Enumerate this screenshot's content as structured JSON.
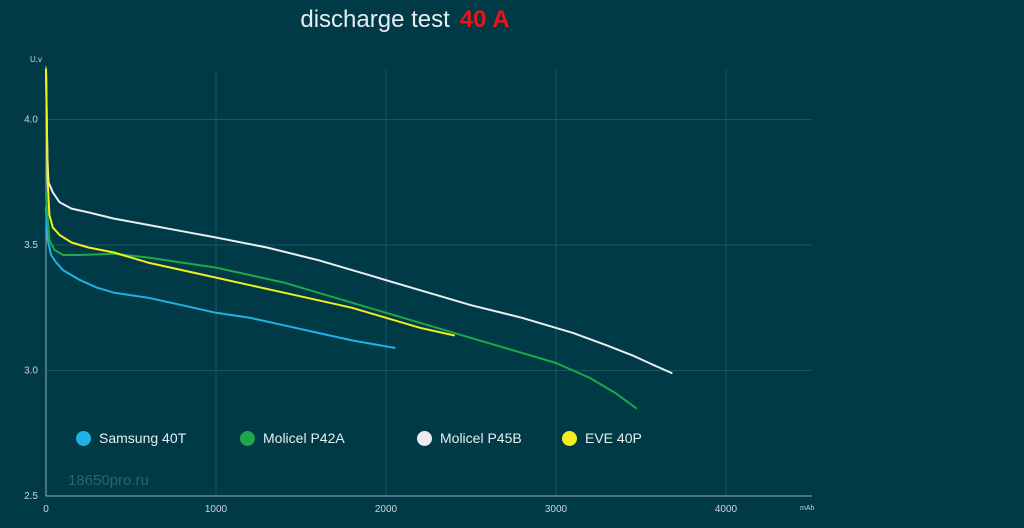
{
  "title": {
    "text": "discharge test",
    "highlight": "40 A"
  },
  "watermark": "18650pro.ru",
  "chart_data": {
    "type": "line",
    "ylabel": "U,v",
    "xlabel": "mAh",
    "xlim": [
      0,
      4500
    ],
    "ylim": [
      2.5,
      4.2
    ],
    "xticks": [
      0,
      1000,
      2000,
      3000,
      4000
    ],
    "yticks": [
      2.5,
      3.0,
      3.5,
      4.0
    ],
    "ytick_labels": [
      "2.5",
      "3.0",
      "3.5",
      "4.0"
    ],
    "grid": true,
    "series": [
      {
        "name": "Samsung 40T",
        "color": "#1db3e8",
        "x": [
          0,
          10,
          30,
          60,
          100,
          150,
          200,
          300,
          400,
          600,
          800,
          1000,
          1200,
          1400,
          1600,
          1800,
          2050
        ],
        "y": [
          3.65,
          3.52,
          3.46,
          3.43,
          3.4,
          3.38,
          3.36,
          3.33,
          3.31,
          3.29,
          3.26,
          3.23,
          3.21,
          3.18,
          3.15,
          3.12,
          3.09
        ]
      },
      {
        "name": "Molicel P42A",
        "color": "#1fa84a",
        "x": [
          0,
          20,
          50,
          100,
          200,
          400,
          600,
          800,
          1000,
          1200,
          1400,
          1600,
          1800,
          2000,
          2200,
          2400,
          2600,
          2800,
          3000,
          3200,
          3350,
          3470
        ],
        "y": [
          3.7,
          3.52,
          3.48,
          3.46,
          3.46,
          3.465,
          3.45,
          3.43,
          3.41,
          3.38,
          3.35,
          3.31,
          3.27,
          3.23,
          3.19,
          3.15,
          3.11,
          3.07,
          3.03,
          2.97,
          2.91,
          2.85
        ]
      },
      {
        "name": "Molicel P45B",
        "color": "#ecedf0",
        "x": [
          0,
          8,
          15,
          40,
          80,
          150,
          250,
          400,
          600,
          800,
          1000,
          1300,
          1600,
          1900,
          2200,
          2500,
          2800,
          3100,
          3300,
          3450,
          3580,
          3680
        ],
        "y": [
          4.2,
          3.85,
          3.75,
          3.71,
          3.67,
          3.645,
          3.63,
          3.605,
          3.58,
          3.555,
          3.53,
          3.49,
          3.44,
          3.38,
          3.32,
          3.26,
          3.21,
          3.15,
          3.1,
          3.06,
          3.02,
          2.99
        ]
      },
      {
        "name": "EVE 40P",
        "color": "#f2ef1a",
        "x": [
          0,
          10,
          20,
          40,
          80,
          150,
          250,
          400,
          600,
          800,
          1000,
          1200,
          1400,
          1600,
          1800,
          2000,
          2200,
          2400
        ],
        "y": [
          4.2,
          3.75,
          3.62,
          3.57,
          3.54,
          3.51,
          3.49,
          3.47,
          3.43,
          3.4,
          3.37,
          3.34,
          3.31,
          3.28,
          3.25,
          3.21,
          3.17,
          3.14
        ]
      }
    ]
  }
}
